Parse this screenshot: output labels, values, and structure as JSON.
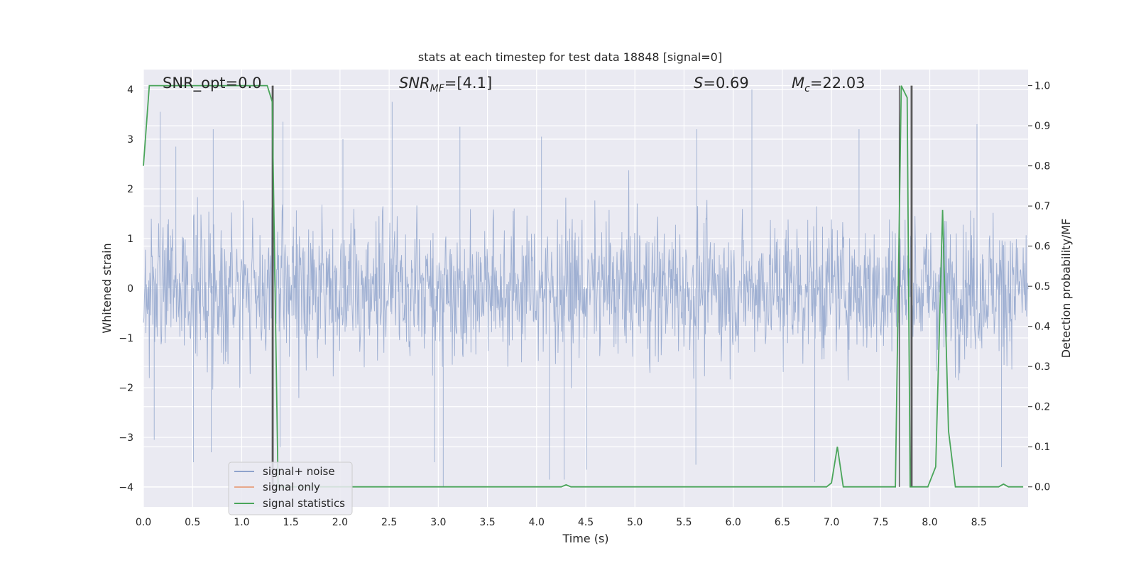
{
  "chart_data": {
    "type": "line",
    "title": "stats at each timestep for test data 18848 [signal=0]",
    "xlabel": "Time (s)",
    "ylabel_left": "Whitened strain",
    "ylabel_right": "Detection probability/MF",
    "xlim": [
      0.0,
      9.0
    ],
    "ylim_left": [
      -4.4,
      4.4
    ],
    "ylim_right": [
      -0.05,
      1.04
    ],
    "xticks": [
      "0.0",
      "0.5",
      "1.0",
      "1.5",
      "2.0",
      "2.5",
      "3.0",
      "3.5",
      "4.0",
      "4.5",
      "5.0",
      "5.5",
      "6.0",
      "6.5",
      "7.0",
      "7.5",
      "8.0",
      "8.5"
    ],
    "yticks_left": [
      "4",
      "3",
      "2",
      "1",
      "0",
      "−1",
      "−2",
      "−3",
      "−4"
    ],
    "yticks_right": [
      "1.0",
      "0.9",
      "0.8",
      "0.7",
      "0.6",
      "0.5",
      "0.4",
      "0.3",
      "0.2",
      "0.1",
      "0.0"
    ],
    "grid": true,
    "background": "#eaeaf2",
    "annotations": [
      {
        "key": "snr_opt",
        "text": "SNR_opt=0.0"
      },
      {
        "key": "snr_mf",
        "base": "SNR",
        "sub": "MF",
        "rest": "=[4.1]"
      },
      {
        "key": "s",
        "base": "S",
        "rest": "=0.69"
      },
      {
        "key": "mc",
        "base": "M",
        "sub": "c",
        "rest": "=22.03"
      }
    ],
    "legend": {
      "placement": "lower-left",
      "entries": [
        {
          "label": "signal+ noise",
          "color": "#8fa3cc"
        },
        {
          "label": "signal only",
          "color": "#e8a88a"
        },
        {
          "label": "signal statistics",
          "color": "#4aa55a"
        }
      ]
    },
    "series": [
      {
        "name": "signal+ noise",
        "color": "#9aacd0",
        "description": "dense whitened strain noise, roughly in [-4, 4]",
        "noise_envelope": {
          "upper_typical": 2.0,
          "lower_typical": -2.0,
          "max": 4.0,
          "min": -4.0
        },
        "spikes": [
          [
            0.17,
            3.55
          ],
          [
            0.33,
            2.85
          ],
          [
            0.71,
            3.2
          ],
          [
            1.42,
            3.35
          ],
          [
            2.03,
            3.0
          ],
          [
            2.53,
            3.75
          ],
          [
            3.22,
            3.25
          ],
          [
            4.05,
            3.05
          ],
          [
            5.63,
            3.2
          ],
          [
            6.19,
            4.0
          ],
          [
            7.28,
            3.2
          ],
          [
            8.48,
            3.3
          ],
          [
            0.11,
            -3.05
          ],
          [
            0.51,
            -3.5
          ],
          [
            0.69,
            -3.3
          ],
          [
            1.39,
            -3.2
          ],
          [
            2.96,
            -3.5
          ],
          [
            3.05,
            -4.0
          ],
          [
            4.13,
            -3.85
          ],
          [
            4.28,
            -3.85
          ],
          [
            4.51,
            -3.65
          ],
          [
            5.62,
            -3.55
          ],
          [
            6.83,
            -3.9
          ],
          [
            8.73,
            -3.6
          ]
        ]
      },
      {
        "name": "signal only",
        "color": "#e8a88a",
        "values": []
      },
      {
        "name": "signal statistics",
        "color": "#4aa55a",
        "axis": "right",
        "x": [
          0.0,
          0.06,
          0.11,
          0.3,
          0.6,
          0.9,
          1.0,
          1.1,
          1.2,
          1.26,
          1.31,
          1.37,
          1.45,
          2.0,
          2.8,
          3.0,
          4.0,
          4.25,
          4.3,
          4.35,
          5.5,
          5.7,
          6.5,
          6.95,
          7.0,
          7.06,
          7.12,
          7.65,
          7.71,
          7.77,
          7.8,
          7.86,
          7.92,
          7.98,
          8.06,
          8.13,
          8.19,
          8.26,
          8.7,
          8.75,
          8.8,
          8.95
        ],
        "y": [
          0.8,
          1.0,
          1.0,
          1.0,
          1.0,
          1.0,
          1.0,
          1.0,
          1.0,
          1.0,
          0.96,
          0.0,
          0.0,
          0.0,
          0.0,
          0.0,
          0.0,
          0.0,
          0.005,
          0.0,
          0.0,
          0.0,
          0.0,
          0.0,
          0.01,
          0.1,
          0.0,
          0.0,
          1.0,
          0.97,
          0.0,
          0.0,
          0.0,
          0.0,
          0.05,
          0.69,
          0.14,
          0.0,
          0.0,
          0.007,
          0.0,
          0.0
        ]
      }
    ],
    "vertical_lines": [
      1.31,
      1.32,
      7.69,
      7.81,
      7.82
    ]
  }
}
